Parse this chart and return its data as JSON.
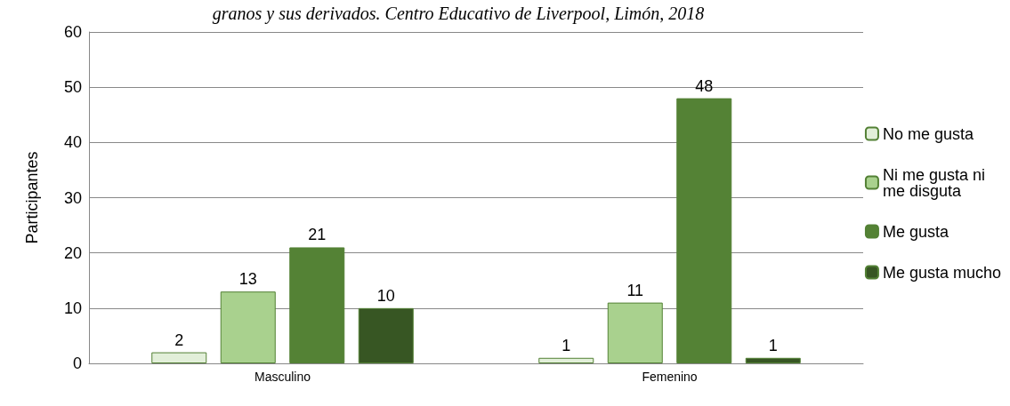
{
  "chart_data": {
    "type": "bar",
    "title": "granos y sus derivados. Centro Educativo de Liverpool, Limón, 2018",
    "ylabel": "Participantes",
    "categories": [
      "Masculino",
      "Femenino"
    ],
    "series": [
      {
        "name": "No me gusta",
        "color": "#e2efd9",
        "values": [
          2,
          1
        ]
      },
      {
        "name": "Ni me gusta ni me disguta",
        "color": "#a9d18e",
        "values": [
          13,
          11
        ]
      },
      {
        "name": "Me gusta",
        "color": "#548235",
        "values": [
          21,
          48
        ]
      },
      {
        "name": "Me gusta mucho",
        "color": "#375623",
        "values": [
          10,
          1
        ]
      }
    ],
    "ylim": [
      0,
      60
    ],
    "yticks": [
      0,
      10,
      20,
      30,
      40,
      50,
      60
    ],
    "grid": "y",
    "legend": "right",
    "data_labels": true
  }
}
